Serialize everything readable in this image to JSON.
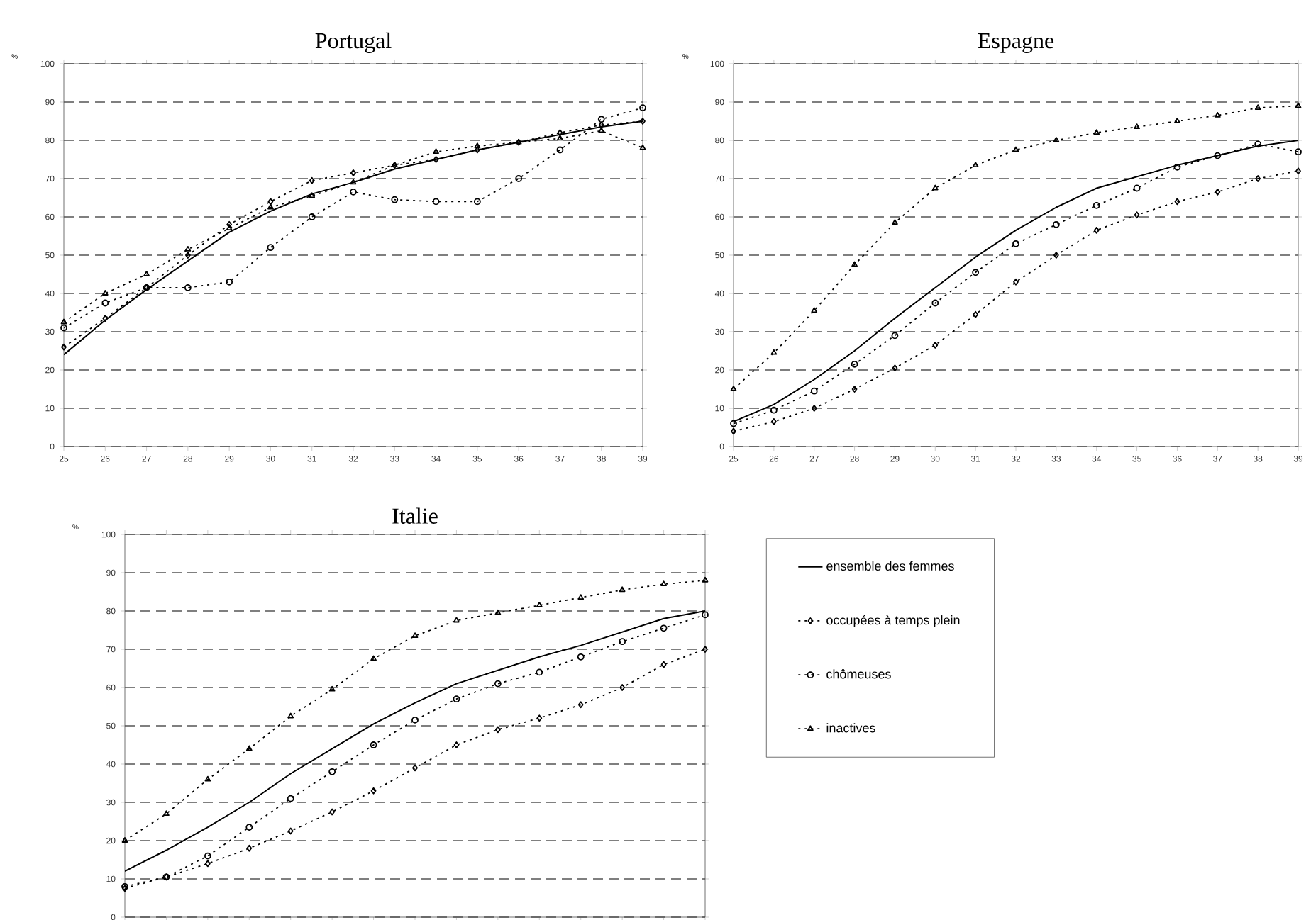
{
  "chart_data": [
    {
      "type": "line",
      "title": "Portugal",
      "ylabel": "%",
      "x": [
        25,
        26,
        27,
        28,
        29,
        30,
        31,
        32,
        33,
        34,
        35,
        36,
        37,
        38,
        39
      ],
      "xlim": [
        25,
        39
      ],
      "xticks": [
        25,
        26,
        27,
        28,
        29,
        30,
        31,
        32,
        33,
        34,
        35,
        36,
        37,
        38,
        39
      ],
      "ylim": [
        0,
        100
      ],
      "yticks": [
        0,
        10,
        20,
        30,
        40,
        50,
        60,
        70,
        80,
        90,
        100
      ],
      "grid": "y",
      "series": [
        {
          "color": "#000000",
          "line_style": "solid",
          "marker": "none",
          "values": [
            24,
            33,
            41,
            48.5,
            56,
            61.5,
            66,
            69,
            72.5,
            75,
            77.5,
            79.5,
            81.5,
            83.5,
            85
          ]
        },
        {
          "color": "#000000",
          "line_style": "dotted",
          "marker": "diamond",
          "values": [
            26,
            33.5,
            41.5,
            50,
            58,
            64,
            69.5,
            71.5,
            73.5,
            75,
            77.5,
            79.5,
            82,
            84,
            85
          ]
        },
        {
          "color": "#000000",
          "line_style": "dotted",
          "marker": "circle",
          "values": [
            31,
            37.5,
            41.5,
            41.5,
            43,
            52,
            60,
            66.5,
            64.5,
            64,
            64,
            70,
            77.5,
            85.5,
            88.5
          ]
        },
        {
          "color": "#000000",
          "line_style": "dotted",
          "marker": "triangle",
          "values": [
            32.5,
            40,
            45,
            51.5,
            57,
            62.5,
            65.5,
            69,
            73.5,
            77,
            78.5,
            79.5,
            80.5,
            82.5,
            78
          ]
        }
      ]
    },
    {
      "type": "line",
      "title": "Espagne",
      "ylabel": "%",
      "x": [
        25,
        26,
        27,
        28,
        29,
        30,
        31,
        32,
        33,
        34,
        35,
        36,
        37,
        38,
        39
      ],
      "xlim": [
        25,
        39
      ],
      "xticks": [
        25,
        26,
        27,
        28,
        29,
        30,
        31,
        32,
        33,
        34,
        35,
        36,
        37,
        38,
        39
      ],
      "ylim": [
        0,
        100
      ],
      "yticks": [
        0,
        10,
        20,
        30,
        40,
        50,
        60,
        70,
        80,
        90,
        100
      ],
      "grid": "y",
      "series": [
        {
          "color": "#000000",
          "line_style": "solid",
          "marker": "none",
          "values": [
            6.5,
            11,
            17.5,
            25,
            33.5,
            41.5,
            49.5,
            56.5,
            62.5,
            67.5,
            70.5,
            73.5,
            76,
            78.5,
            80
          ]
        },
        {
          "color": "#000000",
          "line_style": "dotted",
          "marker": "diamond",
          "values": [
            4,
            6.5,
            10,
            15,
            20.5,
            26.5,
            34.5,
            43,
            50,
            56.5,
            60.5,
            64,
            66.5,
            70,
            72
          ]
        },
        {
          "color": "#000000",
          "line_style": "dotted",
          "marker": "circle",
          "values": [
            6,
            9.5,
            14.5,
            21.5,
            29,
            37.5,
            45.5,
            53,
            58,
            63,
            67.5,
            73,
            76,
            79,
            77
          ]
        },
        {
          "color": "#000000",
          "line_style": "dotted",
          "marker": "triangle",
          "values": [
            15,
            24.5,
            35.5,
            47.5,
            58.5,
            67.5,
            73.5,
            77.5,
            80,
            82,
            83.5,
            85,
            86.5,
            88.5,
            89
          ]
        }
      ]
    },
    {
      "type": "line",
      "title": "Italie",
      "ylabel": "%",
      "categories": [
        null,
        null,
        null,
        null,
        null,
        null,
        null,
        null,
        null,
        null,
        null,
        null,
        null,
        null,
        null
      ],
      "ylim": [
        0,
        100
      ],
      "yticks": [
        0,
        10,
        20,
        30,
        40,
        50,
        60,
        70,
        80,
        90,
        100
      ],
      "grid": "y",
      "legend": "right",
      "series": [
        {
          "name": "ensemble des femmes",
          "color": "#000000",
          "line_style": "solid",
          "marker": "none",
          "values": [
            12,
            17.5,
            23.5,
            30,
            37.5,
            44,
            50.5,
            56,
            61,
            64.5,
            68,
            71,
            74.5,
            78,
            80
          ]
        },
        {
          "name": "occupées à temps plein",
          "color": "#000000",
          "line_style": "dotted",
          "marker": "diamond",
          "values": [
            7.5,
            10.5,
            14,
            18,
            22.5,
            27.5,
            33,
            39,
            45,
            49,
            52,
            55.5,
            60,
            66,
            70
          ]
        },
        {
          "name": "chômeuses",
          "color": "#000000",
          "line_style": "dotted",
          "marker": "circle",
          "values": [
            8,
            10.5,
            16,
            23.5,
            31,
            38,
            45,
            51.5,
            57,
            61,
            64,
            68,
            72,
            75.5,
            79
          ]
        },
        {
          "name": "inactives",
          "color": "#000000",
          "line_style": "dotted",
          "marker": "triangle",
          "values": [
            20,
            27,
            36,
            44,
            52.5,
            59.5,
            67.5,
            73.5,
            77.5,
            79.5,
            81.5,
            83.5,
            85.5,
            87,
            88
          ]
        }
      ]
    }
  ]
}
